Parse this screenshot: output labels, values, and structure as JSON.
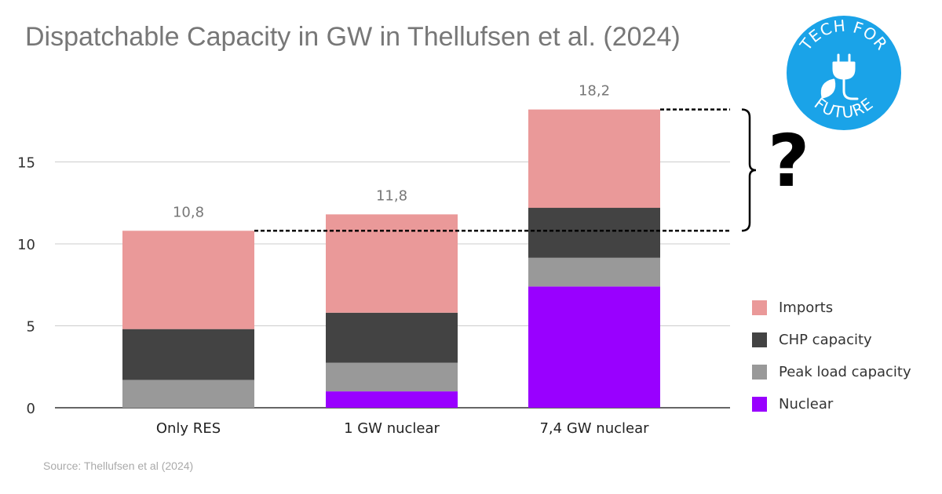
{
  "title": "Dispatchable Capacity in GW in Thellufsen et al. (2024)",
  "source": "Source: Thellufsen et al (2024)",
  "logo": {
    "text_top": "TECH FOR",
    "text_bottom": "FUTURE",
    "color": "#1aa3e8",
    "icon": "plug-leaf-icon"
  },
  "annotation": {
    "symbol": "?"
  },
  "chart_data": {
    "type": "bar",
    "stacked": true,
    "title": "Dispatchable Capacity in GW in Thellufsen et al. (2024)",
    "xlabel": "",
    "ylabel": "",
    "categories": [
      "Only RES",
      "1 GW nuclear",
      "7,4 GW nuclear"
    ],
    "series": [
      {
        "name": "Nuclear",
        "color": "#9900ff",
        "values": [
          0,
          1.0,
          7.4
        ]
      },
      {
        "name": "Peak load capacity",
        "color": "#999999",
        "values": [
          1.7,
          1.75,
          1.75
        ]
      },
      {
        "name": "CHP capacity",
        "color": "#434343",
        "values": [
          3.1,
          3.05,
          3.05
        ]
      },
      {
        "name": "Imports",
        "color": "#ea9999",
        "values": [
          6.0,
          6.0,
          6.0
        ]
      }
    ],
    "totals": [
      10.8,
      11.8,
      18.2
    ],
    "total_labels": [
      "10,8",
      "11,8",
      "18,2"
    ],
    "ylim": [
      0,
      19
    ],
    "yticks": [
      0,
      5,
      10,
      15
    ],
    "grid": true,
    "legend": "right"
  }
}
